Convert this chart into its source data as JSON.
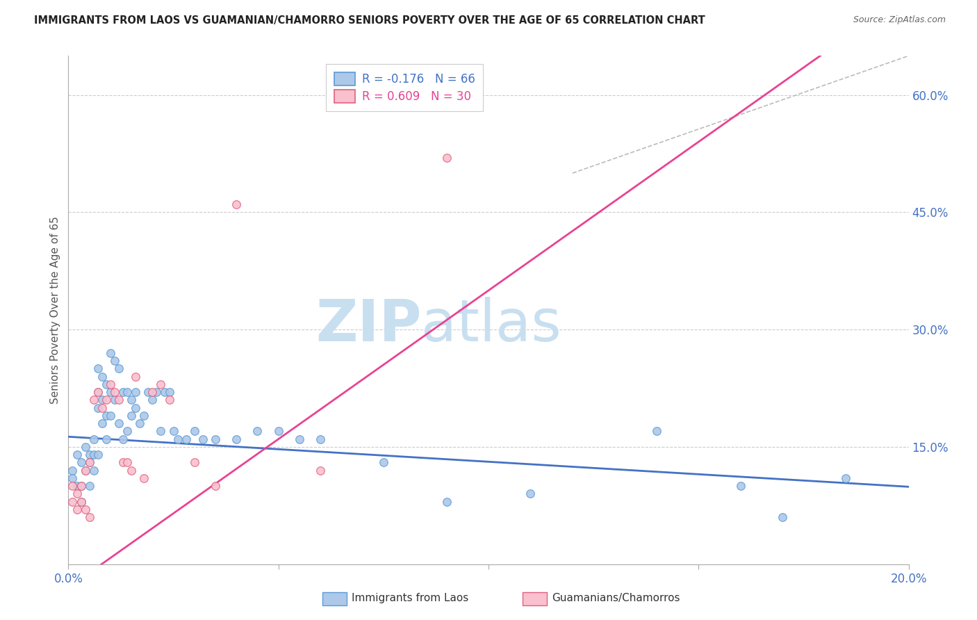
{
  "title": "IMMIGRANTS FROM LAOS VS GUAMANIAN/CHAMORRO SENIORS POVERTY OVER THE AGE OF 65 CORRELATION CHART",
  "source": "Source: ZipAtlas.com",
  "ylabel": "Seniors Poverty Over the Age of 65",
  "watermark_part1": "ZIP",
  "watermark_part2": "atlas",
  "xlim": [
    0.0,
    0.2
  ],
  "ylim": [
    0.0,
    0.65
  ],
  "xticks": [
    0.0,
    0.05,
    0.1,
    0.15,
    0.2
  ],
  "xticklabels": [
    "0.0%",
    "",
    "",
    "",
    "20.0%"
  ],
  "yticks_right": [
    0.15,
    0.3,
    0.45,
    0.6
  ],
  "ytick_labels_right": [
    "15.0%",
    "30.0%",
    "45.0%",
    "60.0%"
  ],
  "series": [
    {
      "name": "Immigrants from Laos",
      "R": -0.176,
      "N": 66,
      "color": "#adc8e8",
      "edge_color": "#5b9bd5",
      "line_color": "#4472c4",
      "x": [
        0.001,
        0.001,
        0.002,
        0.002,
        0.003,
        0.003,
        0.003,
        0.004,
        0.004,
        0.005,
        0.005,
        0.005,
        0.006,
        0.006,
        0.006,
        0.007,
        0.007,
        0.007,
        0.007,
        0.008,
        0.008,
        0.008,
        0.009,
        0.009,
        0.009,
        0.01,
        0.01,
        0.01,
        0.011,
        0.011,
        0.012,
        0.012,
        0.013,
        0.013,
        0.014,
        0.014,
        0.015,
        0.015,
        0.016,
        0.016,
        0.017,
        0.018,
        0.019,
        0.02,
        0.021,
        0.022,
        0.023,
        0.024,
        0.025,
        0.026,
        0.028,
        0.03,
        0.032,
        0.035,
        0.04,
        0.045,
        0.05,
        0.055,
        0.06,
        0.075,
        0.09,
        0.11,
        0.14,
        0.16,
        0.17,
        0.185
      ],
      "y": [
        0.12,
        0.11,
        0.14,
        0.1,
        0.13,
        0.1,
        0.08,
        0.15,
        0.12,
        0.14,
        0.13,
        0.1,
        0.16,
        0.14,
        0.12,
        0.25,
        0.22,
        0.2,
        0.14,
        0.24,
        0.21,
        0.18,
        0.23,
        0.19,
        0.16,
        0.27,
        0.22,
        0.19,
        0.26,
        0.21,
        0.25,
        0.18,
        0.22,
        0.16,
        0.22,
        0.17,
        0.21,
        0.19,
        0.22,
        0.2,
        0.18,
        0.19,
        0.22,
        0.21,
        0.22,
        0.17,
        0.22,
        0.22,
        0.17,
        0.16,
        0.16,
        0.17,
        0.16,
        0.16,
        0.16,
        0.17,
        0.17,
        0.16,
        0.16,
        0.13,
        0.08,
        0.09,
        0.17,
        0.1,
        0.06,
        0.11
      ]
    },
    {
      "name": "Guamanians/Chamorros",
      "R": 0.609,
      "N": 30,
      "color": "#f9c0ce",
      "edge_color": "#e06080",
      "line_color": "#e84393",
      "x": [
        0.001,
        0.001,
        0.002,
        0.002,
        0.003,
        0.003,
        0.004,
        0.004,
        0.005,
        0.005,
        0.006,
        0.007,
        0.008,
        0.009,
        0.01,
        0.011,
        0.012,
        0.013,
        0.014,
        0.015,
        0.016,
        0.018,
        0.02,
        0.022,
        0.024,
        0.03,
        0.035,
        0.04,
        0.06,
        0.09
      ],
      "y": [
        0.1,
        0.08,
        0.09,
        0.07,
        0.1,
        0.08,
        0.12,
        0.07,
        0.13,
        0.06,
        0.21,
        0.22,
        0.2,
        0.21,
        0.23,
        0.22,
        0.21,
        0.13,
        0.13,
        0.12,
        0.24,
        0.11,
        0.22,
        0.23,
        0.21,
        0.13,
        0.1,
        0.46,
        0.12,
        0.52
      ]
    }
  ],
  "legend_blue_label": "R = -0.176   N = 66",
  "legend_pink_label": "R = 0.609   N = 30",
  "legend_blue_R": "R = -0.176",
  "legend_blue_N": "N = 66",
  "legend_pink_R": "R = 0.609",
  "legend_pink_N": "N = 30",
  "bottom_legend_blue": "Immigrants from Laos",
  "bottom_legend_pink": "Guamanians/Chamorros",
  "background_color": "#ffffff",
  "grid_color": "#cccccc",
  "title_color": "#222222",
  "axis_color": "#4472c4",
  "watermark_color_zip": "#c8dff0",
  "watermark_color_atlas": "#c8dff0",
  "ref_line_x": [
    0.12,
    0.2
  ],
  "ref_line_y": [
    0.5,
    0.65
  ]
}
